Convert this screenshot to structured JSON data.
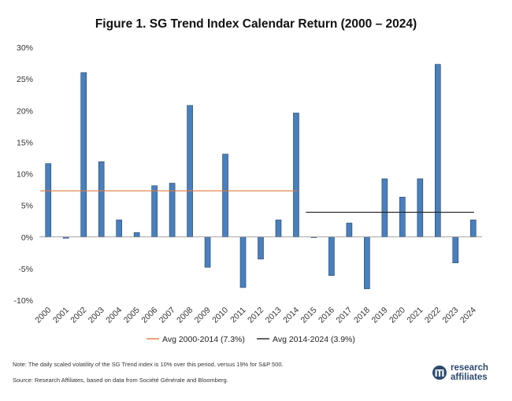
{
  "title": "Figure 1. SG Trend Index Calendar Return (2000 – 2024)",
  "notes": {
    "note1": "Note: The daily scaled volatility of the SG Trend index is 10% over this period, versus 19% for S&P 500.",
    "note2": "Source: Research Affiliates, based on data from Société Générale and Bloomberg."
  },
  "logo": {
    "line1": "research",
    "line2": "affiliates"
  },
  "colors": {
    "bar": "#4a7fbd",
    "bar_edge": "#1f3f66",
    "avg1": "#e07a3f",
    "avg2": "#222222"
  },
  "chart_data": {
    "type": "bar",
    "categories": [
      "2000",
      "2001",
      "2002",
      "2003",
      "2004",
      "2005",
      "2006",
      "2007",
      "2008",
      "2009",
      "2010",
      "2011",
      "2012",
      "2013",
      "2014",
      "2015",
      "2016",
      "2017",
      "2018",
      "2019",
      "2020",
      "2021",
      "2022",
      "2023",
      "2024"
    ],
    "series": [
      {
        "values": [
          11.6,
          -0.2,
          26.0,
          11.9,
          2.7,
          0.7,
          8.1,
          8.5,
          20.8,
          -4.8,
          13.1,
          -8.0,
          -3.5,
          2.7,
          19.6,
          0.0,
          -6.1,
          2.2,
          -8.2,
          9.2,
          6.3,
          9.2,
          27.3,
          -4.1,
          2.7
        ]
      }
    ],
    "reference_lines": [
      {
        "name": "Avg 2000-2014 (7.3%)",
        "value": 7.3,
        "from": "2000",
        "to": "2014",
        "color": "#e07a3f"
      },
      {
        "name": "Avg 2014-2024 (3.9%)",
        "value": 3.9,
        "from": "2015",
        "to": "2024",
        "color": "#222222"
      }
    ],
    "yticks": [
      "30%",
      "25%",
      "20%",
      "15%",
      "10%",
      "5%",
      "0%",
      "-5%",
      "-10%"
    ],
    "ylim": [
      -10,
      30
    ],
    "grid": false,
    "legend": "bottom-center"
  }
}
